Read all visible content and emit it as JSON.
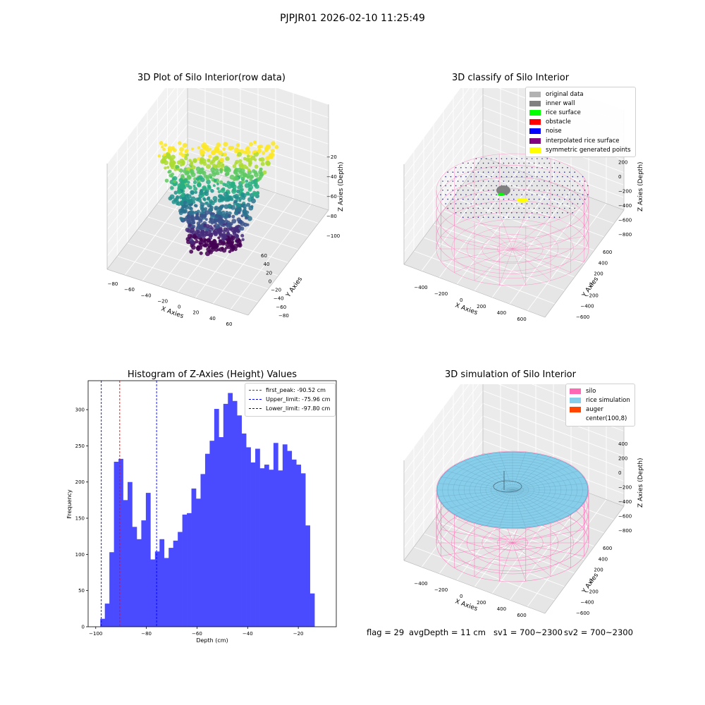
{
  "suptitle": "PJPJR01 2026-02-10 11:25:49",
  "plot1": {
    "title": "3D Plot of Silo Interior(row data)",
    "xlabel": "X Axies",
    "ylabel": "Y Axies",
    "zlabel": "Z Axies (Depth)",
    "xticks": [
      "−80",
      "−60",
      "−40",
      "−20",
      "0",
      "20",
      "40",
      "60"
    ],
    "yticks": [
      "60",
      "40",
      "20",
      "0",
      "−20",
      "−40",
      "−60",
      "−80"
    ],
    "zticks": [
      "−20",
      "−40",
      "−60",
      "−80",
      "−100"
    ],
    "colormap": "viridis"
  },
  "plot2": {
    "title": "3D classify of Silo Interior",
    "xlabel": "X Axies",
    "ylabel": "Y Axies",
    "zlabel": "Z Axies (Depth)",
    "xticks": [
      "−400",
      "−200",
      "0",
      "200",
      "400",
      "600"
    ],
    "yticks": [
      "600",
      "400",
      "200",
      "0",
      "−200",
      "−400",
      "−600"
    ],
    "zticks": [
      "400",
      "200",
      "0",
      "−200",
      "−400",
      "−600",
      "−800"
    ],
    "legend": [
      {
        "label": "original data",
        "color": "#b2b2b2"
      },
      {
        "label": "inner wall",
        "color": "#808080"
      },
      {
        "label": "rice surface",
        "color": "#00ff00"
      },
      {
        "label": "obstacle",
        "color": "#ff0000"
      },
      {
        "label": "noise",
        "color": "#0000ff"
      },
      {
        "label": "interpolated rice surface",
        "color": "#800080"
      },
      {
        "label": "symmetric generated points",
        "color": "#ffff00"
      }
    ]
  },
  "plot4": {
    "title": "3D simulation of Silo Interior",
    "xlabel": "X Axies",
    "ylabel": "Y Axies",
    "zlabel": "Z Axies (Depth)",
    "xticks": [
      "−400",
      "−200",
      "0",
      "200",
      "400",
      "600"
    ],
    "yticks": [
      "600",
      "400",
      "200",
      "0",
      "−200",
      "−400",
      "−600"
    ],
    "zticks": [
      "400",
      "200",
      "0",
      "−200",
      "−400",
      "−600",
      "−800"
    ],
    "legend": [
      {
        "label": "silo",
        "color": "#ff69b4"
      },
      {
        "label": "rice simulation",
        "color": "#87ceeb"
      },
      {
        "label": "auger",
        "color": "#ff4500"
      },
      {
        "label": "center(100,8)",
        "color": "#ffffff"
      }
    ]
  },
  "status": {
    "flag": "flag = 29",
    "avgdepth": "avgDepth = 11 cm",
    "sv1": "sv1 = 700~2300",
    "sv2": "sv2 = 700~2300"
  },
  "chart_data": {
    "type": "bar",
    "title": "Histogram of Z-Axies (Height) Values",
    "xlabel": "Depth (cm)",
    "ylabel": "Frequency",
    "xlim": [
      -103,
      -5
    ],
    "ylim": [
      0,
      340
    ],
    "grid": false,
    "legend_position": "top-right",
    "bin_start": -98.2,
    "bin_width": 1.8,
    "values": [
      11,
      32,
      103,
      228,
      232,
      175,
      200,
      138,
      121,
      147,
      185,
      93,
      104,
      121,
      95,
      109,
      119,
      131,
      155,
      157,
      191,
      177,
      211,
      239,
      257,
      301,
      262,
      308,
      323,
      312,
      292,
      267,
      248,
      227,
      246,
      219,
      224,
      217,
      254,
      216,
      252,
      243,
      231,
      224,
      212,
      140,
      46
    ],
    "xticks": [
      -100,
      -80,
      -60,
      -40,
      -20
    ],
    "xtick_labels": [
      "−100",
      "−80",
      "−60",
      "−40",
      "−20"
    ],
    "yticks": [
      0,
      50,
      100,
      150,
      200,
      250,
      300
    ],
    "color": "#4a4aff",
    "vlines": [
      {
        "label": "first_peak: -90.52 cm",
        "x": -90.52,
        "color": "#ff0000"
      },
      {
        "label": "Upper_limit: -75.96 cm",
        "x": -75.96,
        "color": "#0000ff"
      },
      {
        "label": "Lower_limit: -97.80 cm",
        "x": -97.8,
        "color": "#0000ff"
      }
    ]
  }
}
